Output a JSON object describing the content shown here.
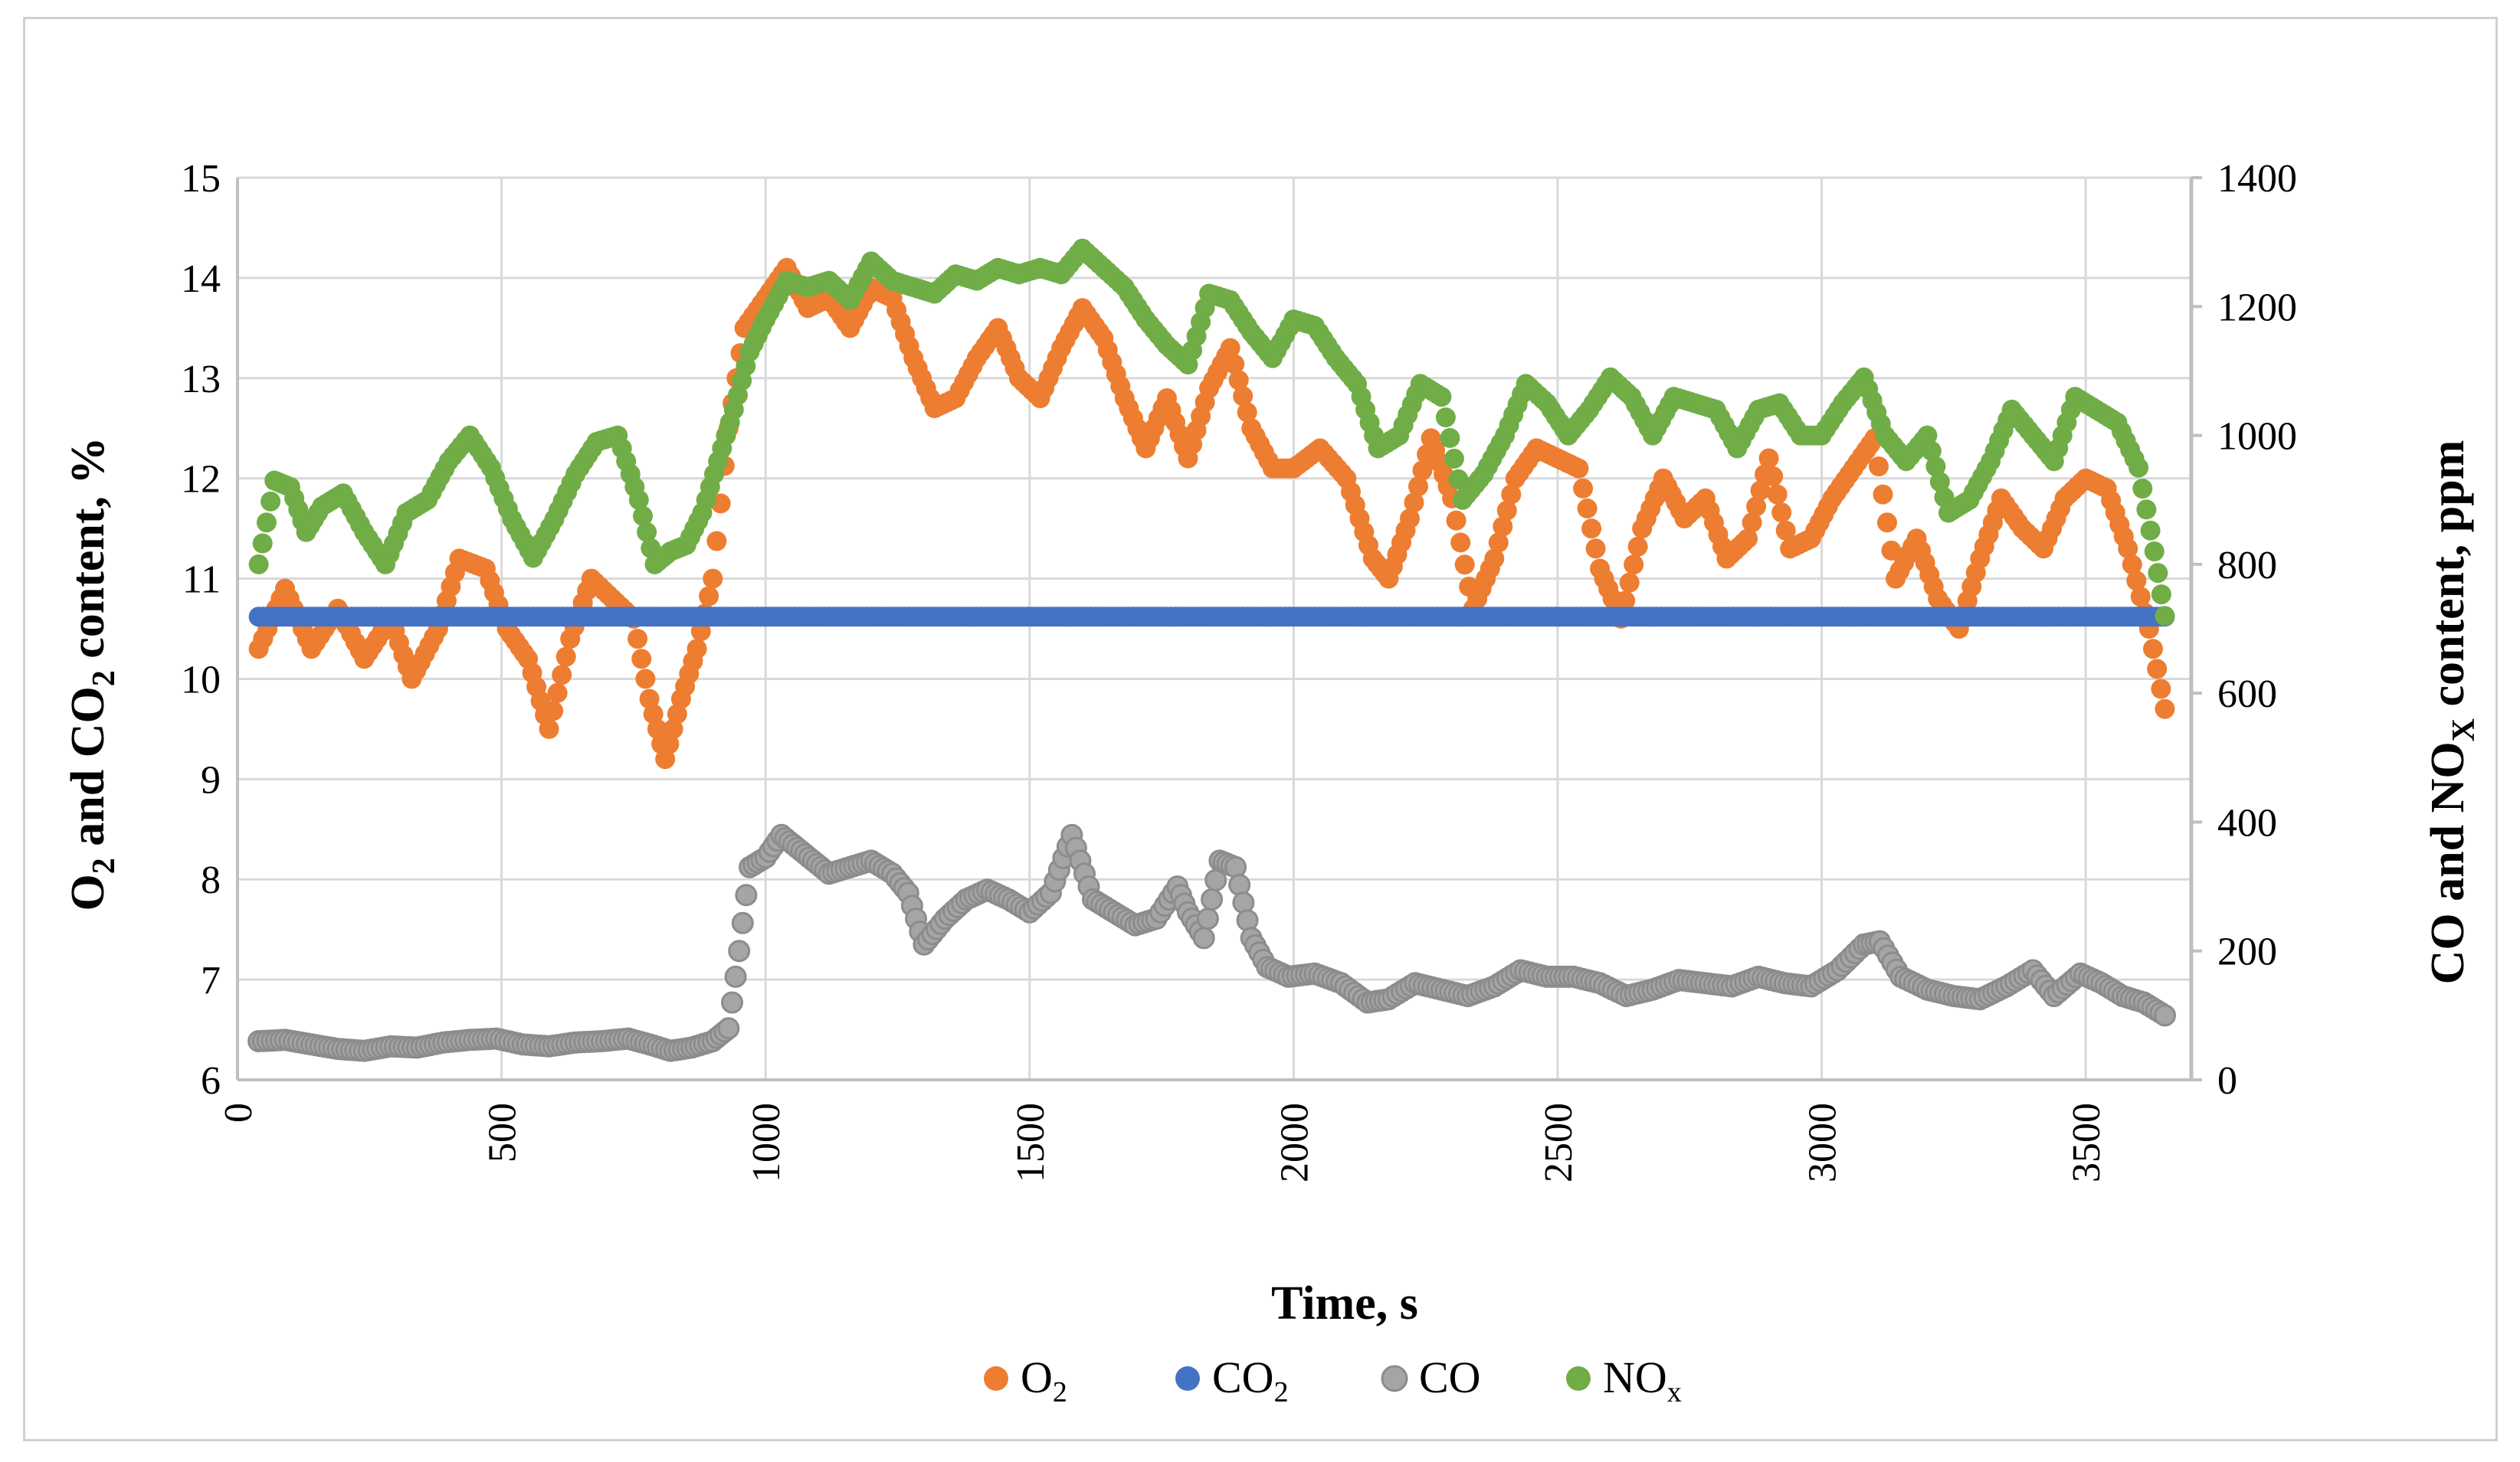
{
  "chart_data": {
    "type": "scatter",
    "title": "",
    "xlabel": "Time, s",
    "ylabel_left": "O2 and CO2 content, %",
    "ylabel_right": "CO and NOX content, ppm",
    "xlim": [
      0,
      3700
    ],
    "ylim_left": [
      6,
      15
    ],
    "ylim_right": [
      0,
      1400
    ],
    "grid": true,
    "legend_position": "bottom",
    "x_ticks": [
      "0",
      "500",
      "1000",
      "1500",
      "2000",
      "2500",
      "3000",
      "3500"
    ],
    "y_left_ticks": [
      "6",
      "7",
      "8",
      "9",
      "10",
      "11",
      "12",
      "13",
      "14",
      "15"
    ],
    "y_right_ticks": [
      "0",
      "200",
      "400",
      "600",
      "800",
      "1000",
      "1200",
      "1400"
    ],
    "series": [
      {
        "name": "O2",
        "axis": "left",
        "color": "#ED7D31",
        "x": [
          40,
          90,
          140,
          190,
          240,
          290,
          330,
          380,
          420,
          470,
          510,
          550,
          590,
          630,
          670,
          710,
          750,
          780,
          810,
          840,
          870,
          900,
          930,
          960,
          1000,
          1040,
          1080,
          1120,
          1160,
          1200,
          1240,
          1280,
          1320,
          1360,
          1400,
          1440,
          1480,
          1520,
          1560,
          1600,
          1640,
          1680,
          1720,
          1760,
          1800,
          1840,
          1880,
          1920,
          1960,
          2000,
          2050,
          2100,
          2150,
          2180,
          2220,
          2260,
          2300,
          2340,
          2380,
          2420,
          2460,
          2500,
          2540,
          2580,
          2620,
          2660,
          2700,
          2740,
          2780,
          2820,
          2860,
          2900,
          2940,
          2980,
          3020,
          3060,
          3100,
          3140,
          3180,
          3220,
          3260,
          3300,
          3340,
          3380,
          3420,
          3460,
          3500,
          3540,
          3580,
          3620,
          3650
        ],
        "values": [
          10.3,
          10.9,
          10.3,
          10.7,
          10.2,
          10.6,
          10.0,
          10.5,
          11.2,
          11.1,
          10.5,
          10.2,
          9.5,
          10.4,
          11.0,
          10.8,
          10.6,
          9.8,
          9.2,
          9.8,
          10.3,
          11.0,
          12.5,
          13.5,
          13.8,
          14.1,
          13.7,
          13.8,
          13.5,
          13.9,
          13.8,
          13.2,
          12.7,
          12.8,
          13.2,
          13.5,
          13.0,
          12.8,
          13.3,
          13.7,
          13.4,
          12.8,
          12.3,
          12.8,
          12.2,
          12.9,
          13.3,
          12.5,
          12.1,
          12.1,
          12.3,
          12.0,
          11.2,
          11.0,
          11.6,
          12.4,
          11.8,
          10.7,
          11.2,
          12.0,
          12.3,
          12.2,
          12.1,
          11.1,
          10.6,
          11.5,
          12.0,
          11.6,
          11.8,
          11.2,
          11.4,
          12.2,
          11.3,
          11.4,
          11.8,
          12.1,
          12.4,
          11.0,
          11.4,
          10.8,
          10.5,
          11.2,
          11.8,
          11.5,
          11.3,
          11.8,
          12.0,
          11.9,
          11.3,
          10.5,
          9.7
        ]
      },
      {
        "name": "CO2",
        "axis": "left",
        "color": "#4472C4",
        "x": [
          40,
          400,
          800,
          1200,
          1600,
          2000,
          2400,
          2800,
          3200,
          3650
        ],
        "values": [
          10.62,
          10.62,
          10.62,
          10.62,
          10.62,
          10.62,
          10.62,
          10.62,
          10.62,
          10.62
        ]
      },
      {
        "name": "CO",
        "axis": "right",
        "color": "#A5A5A5",
        "x": [
          40,
          90,
          140,
          190,
          240,
          290,
          340,
          390,
          440,
          490,
          540,
          590,
          640,
          690,
          740,
          780,
          820,
          860,
          900,
          930,
          950,
          970,
          1000,
          1030,
          1060,
          1090,
          1120,
          1160,
          1200,
          1240,
          1270,
          1300,
          1340,
          1380,
          1420,
          1460,
          1500,
          1540,
          1580,
          1620,
          1660,
          1700,
          1740,
          1780,
          1800,
          1830,
          1860,
          1890,
          1920,
          1950,
          1990,
          2040,
          2090,
          2140,
          2180,
          2230,
          2280,
          2330,
          2380,
          2430,
          2480,
          2530,
          2580,
          2630,
          2680,
          2730,
          2780,
          2830,
          2880,
          2930,
          2980,
          3030,
          3080,
          3110,
          3150,
          3200,
          3250,
          3300,
          3350,
          3400,
          3440,
          3490,
          3530,
          3570,
          3610,
          3650
        ],
        "values": [
          60,
          62,
          55,
          48,
          45,
          52,
          50,
          58,
          62,
          64,
          55,
          52,
          58,
          60,
          64,
          55,
          45,
          50,
          60,
          80,
          200,
          330,
          345,
          380,
          360,
          340,
          320,
          330,
          340,
          320,
          290,
          210,
          250,
          280,
          295,
          280,
          260,
          290,
          380,
          280,
          260,
          240,
          250,
          300,
          260,
          220,
          340,
          330,
          220,
          175,
          160,
          165,
          150,
          120,
          125,
          150,
          140,
          130,
          145,
          170,
          160,
          160,
          150,
          130,
          140,
          155,
          150,
          145,
          160,
          150,
          145,
          170,
          210,
          215,
          160,
          140,
          130,
          125,
          145,
          170,
          130,
          165,
          150,
          130,
          120,
          100
        ]
      },
      {
        "name": "NOx",
        "axis": "right",
        "color": "#70AD47",
        "x": [
          40,
          70,
          100,
          130,
          160,
          200,
          240,
          280,
          320,
          360,
          400,
          440,
          480,
          520,
          560,
          600,
          640,
          680,
          720,
          760,
          790,
          820,
          850,
          880,
          910,
          940,
          970,
          1000,
          1040,
          1080,
          1120,
          1160,
          1200,
          1240,
          1280,
          1320,
          1360,
          1400,
          1440,
          1480,
          1520,
          1560,
          1600,
          1640,
          1680,
          1720,
          1760,
          1800,
          1840,
          1880,
          1920,
          1960,
          2000,
          2040,
          2080,
          2120,
          2160,
          2200,
          2240,
          2280,
          2320,
          2360,
          2400,
          2440,
          2480,
          2520,
          2560,
          2600,
          2640,
          2680,
          2720,
          2760,
          2800,
          2840,
          2880,
          2920,
          2960,
          3000,
          3040,
          3080,
          3120,
          3160,
          3200,
          3240,
          3280,
          3320,
          3360,
          3400,
          3440,
          3480,
          3520,
          3560,
          3600,
          3630,
          3650
        ],
        "values": [
          800,
          930,
          920,
          850,
          890,
          910,
          850,
          800,
          880,
          900,
          960,
          1000,
          950,
          870,
          810,
          870,
          940,
          990,
          1000,
          900,
          800,
          820,
          830,
          880,
          960,
          1040,
          1130,
          1180,
          1240,
          1230,
          1240,
          1210,
          1270,
          1240,
          1230,
          1220,
          1250,
          1240,
          1260,
          1250,
          1260,
          1250,
          1290,
          1260,
          1230,
          1180,
          1140,
          1110,
          1220,
          1210,
          1160,
          1120,
          1180,
          1170,
          1120,
          1080,
          980,
          1000,
          1080,
          1060,
          900,
          940,
          1000,
          1080,
          1050,
          1000,
          1040,
          1090,
          1060,
          1000,
          1060,
          1050,
          1040,
          980,
          1040,
          1050,
          1000,
          1000,
          1050,
          1090,
          1000,
          960,
          1000,
          880,
          900,
          960,
          1040,
          1000,
          960,
          1060,
          1040,
          1020,
          950,
          820,
          720
        ]
      }
    ]
  }
}
